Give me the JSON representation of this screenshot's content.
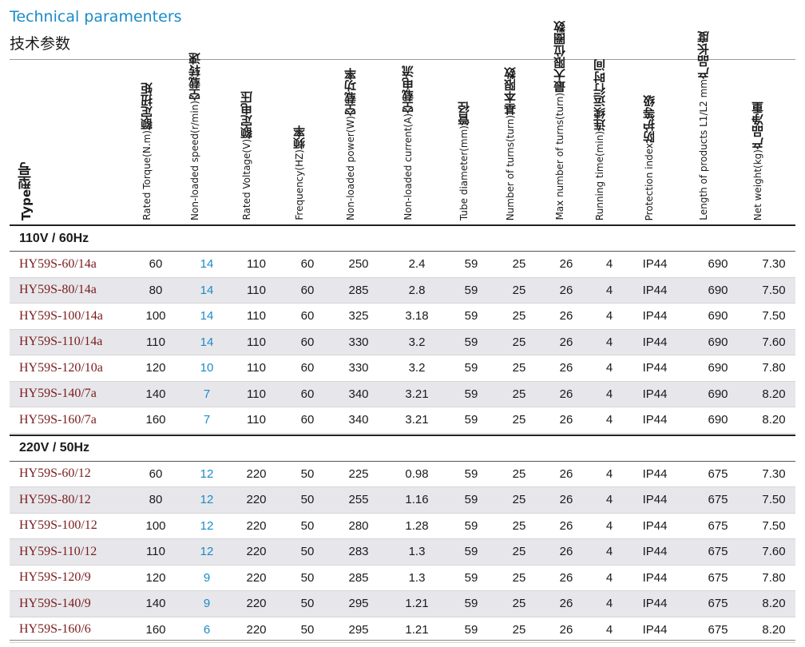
{
  "title_en": "Technical paramenters",
  "title_cn": "技术参数",
  "headers": [
    {
      "key": "type",
      "cn": "型号",
      "en": "Type"
    },
    {
      "key": "torque",
      "cn": "额定扭矩",
      "en": "Rated Torque(N.m)"
    },
    {
      "key": "speed",
      "cn": "空载转速",
      "en": "Non-loaded speed(r/min)"
    },
    {
      "key": "voltage",
      "cn": "额定电压",
      "en": "Rated Voltage(V)"
    },
    {
      "key": "frequency",
      "cn": "频率",
      "en": "Frequency(HZ)"
    },
    {
      "key": "power",
      "cn": "空载功率",
      "en": "Non-loaded power(W)"
    },
    {
      "key": "current",
      "cn": "空载电流",
      "en": "Non-loaded current(A)"
    },
    {
      "key": "tube",
      "cn": "管径",
      "en": "Tube diameter(mm)"
    },
    {
      "key": "turns",
      "cn": "基本限数",
      "en": "Number of turns(turn)"
    },
    {
      "key": "maxturns",
      "cn": "最大限位圈数",
      "en": "Max number of turns(turn)"
    },
    {
      "key": "runtime",
      "cn": "连续运行时间",
      "en": "Running time(min)"
    },
    {
      "key": "protection",
      "cn": "防护等级",
      "en": "Protection index"
    },
    {
      "key": "length",
      "cn": "产品长度",
      "en": "Length of products L1/L2 mm"
    },
    {
      "key": "weight",
      "cn": "产品净重",
      "en": "Net weight(kg)"
    }
  ],
  "sections": [
    {
      "label": "110V / 60Hz",
      "rows": [
        [
          "HY59S-60/14a",
          "60",
          "14",
          "110",
          "60",
          "250",
          "2.4",
          "59",
          "25",
          "26",
          "4",
          "IP44",
          "690",
          "7.30"
        ],
        [
          "HY59S-80/14a",
          "80",
          "14",
          "110",
          "60",
          "285",
          "2.8",
          "59",
          "25",
          "26",
          "4",
          "IP44",
          "690",
          "7.50"
        ],
        [
          "HY59S-100/14a",
          "100",
          "14",
          "110",
          "60",
          "325",
          "3.18",
          "59",
          "25",
          "26",
          "4",
          "IP44",
          "690",
          "7.50"
        ],
        [
          "HY59S-110/14a",
          "110",
          "14",
          "110",
          "60",
          "330",
          "3.2",
          "59",
          "25",
          "26",
          "4",
          "IP44",
          "690",
          "7.60"
        ],
        [
          "HY59S-120/10a",
          "120",
          "10",
          "110",
          "60",
          "330",
          "3.2",
          "59",
          "25",
          "26",
          "4",
          "IP44",
          "690",
          "7.80"
        ],
        [
          "HY59S-140/7a",
          "140",
          "7",
          "110",
          "60",
          "340",
          "3.21",
          "59",
          "25",
          "26",
          "4",
          "IP44",
          "690",
          "8.20"
        ],
        [
          "HY59S-160/7a",
          "160",
          "7",
          "110",
          "60",
          "340",
          "3.21",
          "59",
          "25",
          "26",
          "4",
          "IP44",
          "690",
          "8.20"
        ]
      ]
    },
    {
      "label": "220V / 50Hz",
      "rows": [
        [
          "HY59S-60/12",
          "60",
          "12",
          "220",
          "50",
          "225",
          "0.98",
          "59",
          "25",
          "26",
          "4",
          "IP44",
          "675",
          "7.30"
        ],
        [
          "HY59S-80/12",
          "80",
          "12",
          "220",
          "50",
          "255",
          "1.16",
          "59",
          "25",
          "26",
          "4",
          "IP44",
          "675",
          "7.50"
        ],
        [
          "HY59S-100/12",
          "100",
          "12",
          "220",
          "50",
          "280",
          "1.28",
          "59",
          "25",
          "26",
          "4",
          "IP44",
          "675",
          "7.50"
        ],
        [
          "HY59S-110/12",
          "110",
          "12",
          "220",
          "50",
          "283",
          "1.3",
          "59",
          "25",
          "26",
          "4",
          "IP44",
          "675",
          "7.60"
        ],
        [
          "HY59S-120/9",
          "120",
          "9",
          "220",
          "50",
          "285",
          "1.3",
          "59",
          "25",
          "26",
          "4",
          "IP44",
          "675",
          "7.80"
        ],
        [
          "HY59S-140/9",
          "140",
          "9",
          "220",
          "50",
          "295",
          "1.21",
          "59",
          "25",
          "26",
          "4",
          "IP44",
          "675",
          "8.20"
        ],
        [
          "HY59S-160/6",
          "160",
          "6",
          "220",
          "50",
          "295",
          "1.21",
          "59",
          "25",
          "26",
          "4",
          "IP44",
          "675",
          "8.20"
        ]
      ]
    }
  ]
}
